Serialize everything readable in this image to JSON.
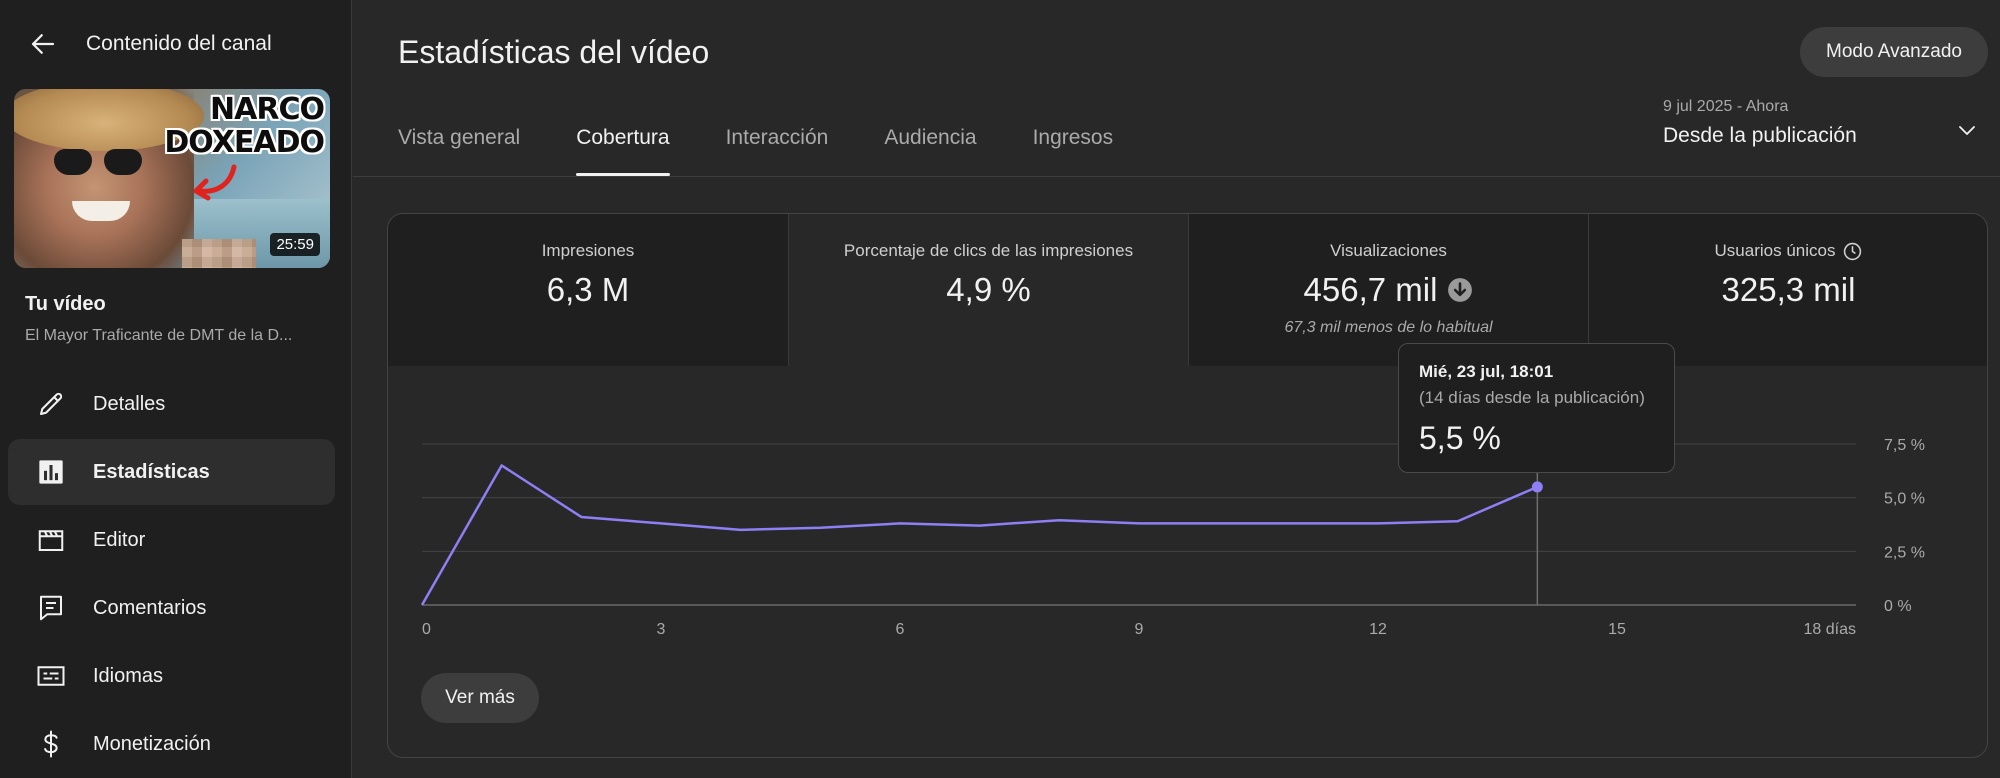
{
  "sidebar": {
    "header_title": "Contenido del canal",
    "thumbnail": {
      "overlay_text_line1": "NARCO",
      "overlay_text_line2": "DOXEADO",
      "duration": "25:59"
    },
    "your_video_label": "Tu vídeo",
    "video_title": "El Mayor Traficante de DMT de la D...",
    "items": [
      {
        "label": "Detalles",
        "icon": "pencil-icon",
        "active": false
      },
      {
        "label": "Estadísticas",
        "icon": "analytics-icon",
        "active": true
      },
      {
        "label": "Editor",
        "icon": "clapperboard-icon",
        "active": false
      },
      {
        "label": "Comentarios",
        "icon": "comment-icon",
        "active": false
      },
      {
        "label": "Idiomas",
        "icon": "subtitles-icon",
        "active": false
      },
      {
        "label": "Monetización",
        "icon": "dollar-icon",
        "active": false
      }
    ]
  },
  "main": {
    "title": "Estadísticas del vídeo",
    "advanced_button": "Modo Avanzado",
    "tabs": [
      {
        "label": "Vista general",
        "active": false
      },
      {
        "label": "Cobertura",
        "active": true
      },
      {
        "label": "Interacción",
        "active": false
      },
      {
        "label": "Audiencia",
        "active": false
      },
      {
        "label": "Ingresos",
        "active": false
      }
    ],
    "date_range": {
      "range": "9 jul 2025 - Ahora",
      "label": "Desde la publicación"
    },
    "metrics": [
      {
        "label": "Impresiones",
        "value": "6,3 M",
        "note": ""
      },
      {
        "label": "Porcentaje de clics de las impresiones",
        "value": "4,9 %",
        "note": ""
      },
      {
        "label": "Visualizaciones",
        "value": "456,7 mil",
        "note": "67,3 mil menos de lo habitual"
      },
      {
        "label": "Usuarios únicos",
        "value": "325,3 mil",
        "note": ""
      }
    ],
    "tooltip": {
      "date": "Mié, 23 jul, 18:01",
      "subtitle": "(14 días desde la publicación)",
      "value": "5,5 %"
    },
    "see_more_button": "Ver más"
  },
  "colors": {
    "accent_line": "#8f7ff5",
    "background": "#282828",
    "sidebar": "#1f1f1f"
  },
  "chart_data": {
    "type": "line",
    "title": "",
    "xlabel": "",
    "ylabel": "",
    "x": [
      0,
      1,
      2,
      3,
      4,
      5,
      6,
      7,
      8,
      9,
      10,
      11,
      12,
      13,
      14
    ],
    "series": [
      {
        "values": [
          0,
          6.5,
          4.1,
          3.8,
          3.5,
          3.6,
          3.8,
          3.7,
          3.95,
          3.8,
          3.8,
          3.8,
          3.8,
          3.9,
          5.5
        ]
      }
    ],
    "xlim": [
      0,
      18
    ],
    "ylim": [
      0,
      7.5
    ],
    "x_ticks": [
      0,
      3,
      6,
      9,
      12,
      15,
      18
    ],
    "x_tick_labels": [
      "0",
      "3",
      "6",
      "9",
      "12",
      "15",
      "18 días"
    ],
    "y_ticks": [
      0,
      2.5,
      5,
      7.5
    ],
    "y_tick_labels": [
      "0 %",
      "2,5 %",
      "5,0 %",
      "7,5 %"
    ],
    "highlight_x": 14,
    "grid": true,
    "legend": "none"
  }
}
